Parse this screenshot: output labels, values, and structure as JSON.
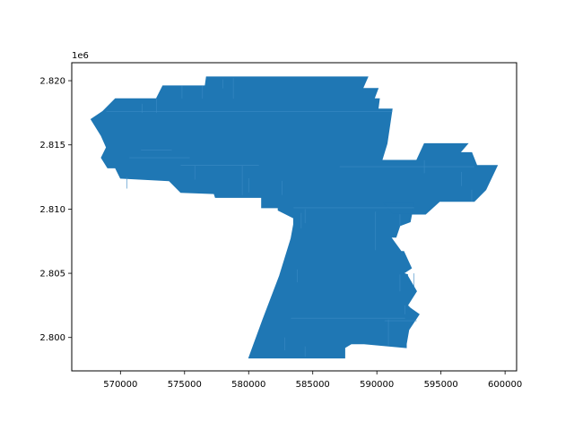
{
  "chart_data": {
    "type": "map",
    "title": "",
    "xlabel": "",
    "ylabel": "",
    "xlim": [
      566200,
      600900
    ],
    "ylim": [
      2797400,
      2821400
    ],
    "y_offset_label": "1e6",
    "x_ticks": [
      {
        "value": 570000,
        "label": "570000"
      },
      {
        "value": 575000,
        "label": "575000"
      },
      {
        "value": 580000,
        "label": "580000"
      },
      {
        "value": 585000,
        "label": "585000"
      },
      {
        "value": 590000,
        "label": "590000"
      },
      {
        "value": 595000,
        "label": "595000"
      },
      {
        "value": 600000,
        "label": "600000"
      }
    ],
    "y_ticks": [
      {
        "value": 2800000,
        "label": "2.800"
      },
      {
        "value": 2805000,
        "label": "2.805"
      },
      {
        "value": 2810000,
        "label": "2.810"
      },
      {
        "value": 2815000,
        "label": "2.815"
      },
      {
        "value": 2820000,
        "label": "2.820"
      }
    ],
    "grid": false,
    "fill_color": "#1f77b4",
    "edge_color": "#1f77b4",
    "seam_color": "#3a8ac4",
    "main_polygon": [
      [
        576700,
        2820300
      ],
      [
        589300,
        2820300
      ],
      [
        588900,
        2819400
      ],
      [
        590100,
        2819400
      ],
      [
        589800,
        2818600
      ],
      [
        590200,
        2818600
      ],
      [
        590100,
        2817800
      ],
      [
        591200,
        2817800
      ],
      [
        590800,
        2815100
      ],
      [
        590400,
        2813800
      ],
      [
        593100,
        2813800
      ],
      [
        593700,
        2815100
      ],
      [
        597100,
        2815100
      ],
      [
        596500,
        2814400
      ],
      [
        597400,
        2814400
      ],
      [
        597800,
        2813400
      ],
      [
        599400,
        2813400
      ],
      [
        598500,
        2811500
      ],
      [
        597600,
        2810600
      ],
      [
        594900,
        2810600
      ],
      [
        593800,
        2809600
      ],
      [
        591300,
        2809600
      ],
      [
        590500,
        2810500
      ],
      [
        592900,
        2810500
      ],
      [
        592600,
        2809000
      ],
      [
        591800,
        2808700
      ],
      [
        591500,
        2807800
      ],
      [
        591100,
        2807800
      ],
      [
        591900,
        2806700
      ],
      [
        592100,
        2806700
      ],
      [
        592700,
        2805400
      ],
      [
        592100,
        2805000
      ],
      [
        592400,
        2804900
      ],
      [
        592400,
        2804800
      ],
      [
        593100,
        2803600
      ],
      [
        592400,
        2802500
      ],
      [
        592600,
        2802300
      ],
      [
        593300,
        2801800
      ],
      [
        592500,
        2800600
      ],
      [
        592300,
        2799500
      ],
      [
        592300,
        2799200
      ],
      [
        589000,
        2799500
      ],
      [
        588000,
        2799500
      ],
      [
        587500,
        2799200
      ],
      [
        587500,
        2798400
      ],
      [
        580000,
        2798400
      ],
      [
        581100,
        2801400
      ],
      [
        582400,
        2804800
      ],
      [
        583300,
        2807700
      ],
      [
        583500,
        2808800
      ],
      [
        583500,
        2809300
      ],
      [
        582300,
        2809900
      ],
      [
        582300,
        2810100
      ],
      [
        581000,
        2810100
      ],
      [
        581000,
        2810900
      ],
      [
        577400,
        2810900
      ],
      [
        577300,
        2811200
      ],
      [
        574700,
        2811300
      ],
      [
        573800,
        2812200
      ],
      [
        570000,
        2812400
      ],
      [
        569600,
        2813200
      ],
      [
        569000,
        2813200
      ],
      [
        568500,
        2814000
      ],
      [
        568900,
        2814800
      ],
      [
        568500,
        2815700
      ],
      [
        567700,
        2817000
      ],
      [
        568600,
        2817600
      ],
      [
        569600,
        2818600
      ],
      [
        572800,
        2818600
      ],
      [
        573300,
        2819600
      ],
      [
        576600,
        2819600
      ]
    ],
    "seams": [
      [
        [
          579500,
          2813400
        ],
        [
          579500,
          2811100
        ]
      ],
      [
        [
          575800,
          2813400
        ],
        [
          575800,
          2812300
        ]
      ],
      [
        [
          572800,
          2818600
        ],
        [
          572800,
          2817500
        ]
      ],
      [
        [
          574800,
          2819600
        ],
        [
          574800,
          2818600
        ]
      ],
      [
        [
          576400,
          2819600
        ],
        [
          576400,
          2818600
        ]
      ],
      [
        [
          578800,
          2820200
        ],
        [
          578800,
          2818600
        ]
      ],
      [
        [
          580000,
          2812400
        ],
        [
          580000,
          2811300
        ]
      ],
      [
        [
          582600,
          2812200
        ],
        [
          582600,
          2811100
        ]
      ],
      [
        [
          584400,
          2810000
        ],
        [
          584400,
          2808900
        ]
      ],
      [
        [
          584100,
          2809700
        ],
        [
          584100,
          2808500
        ]
      ],
      [
        [
          589900,
          2809800
        ],
        [
          589900,
          2806800
        ]
      ],
      [
        [
          591800,
          2809600
        ],
        [
          591800,
          2808700
        ]
      ],
      [
        [
          591800,
          2804900
        ],
        [
          591800,
          2803600
        ]
      ],
      [
        [
          590900,
          2801400
        ],
        [
          590900,
          2799400
        ]
      ],
      [
        [
          592900,
          2805000
        ],
        [
          592900,
          2803900
        ]
      ],
      [
        [
          592200,
          2802500
        ],
        [
          592200,
          2801800
        ]
      ],
      [
        [
          582800,
          2800000
        ],
        [
          582800,
          2799000
        ]
      ],
      [
        [
          584400,
          2799300
        ],
        [
          584400,
          2798500
        ]
      ],
      [
        [
          583800,
          2805300
        ],
        [
          583800,
          2804300
        ]
      ],
      [
        [
          593700,
          2813800
        ],
        [
          593700,
          2812800
        ]
      ],
      [
        [
          596600,
          2812900
        ],
        [
          596600,
          2811800
        ]
      ],
      [
        [
          597400,
          2811500
        ],
        [
          597400,
          2810600
        ]
      ],
      [
        [
          570500,
          2812500
        ],
        [
          570500,
          2811600
        ]
      ],
      [
        [
          571700,
          2818200
        ],
        [
          571700,
          2817500
        ]
      ],
      [
        [
          578000,
          2820100
        ],
        [
          578000,
          2819400
        ]
      ],
      [
        [
          574700,
          2813400
        ],
        [
          580800,
          2813400
        ]
      ],
      [
        [
          568900,
          2817600
        ],
        [
          591200,
          2817600
        ]
      ],
      [
        [
          583500,
          2810100
        ],
        [
          592900,
          2810100
        ]
      ],
      [
        [
          590600,
          2801300
        ],
        [
          593100,
          2801300
        ]
      ],
      [
        [
          583300,
          2801500
        ],
        [
          592200,
          2801500
        ]
      ],
      [
        [
          587100,
          2813300
        ],
        [
          597600,
          2813300
        ]
      ],
      [
        [
          570700,
          2814000
        ],
        [
          575400,
          2814000
        ]
      ],
      [
        [
          571600,
          2814600
        ],
        [
          574000,
          2814600
        ]
      ]
    ]
  }
}
